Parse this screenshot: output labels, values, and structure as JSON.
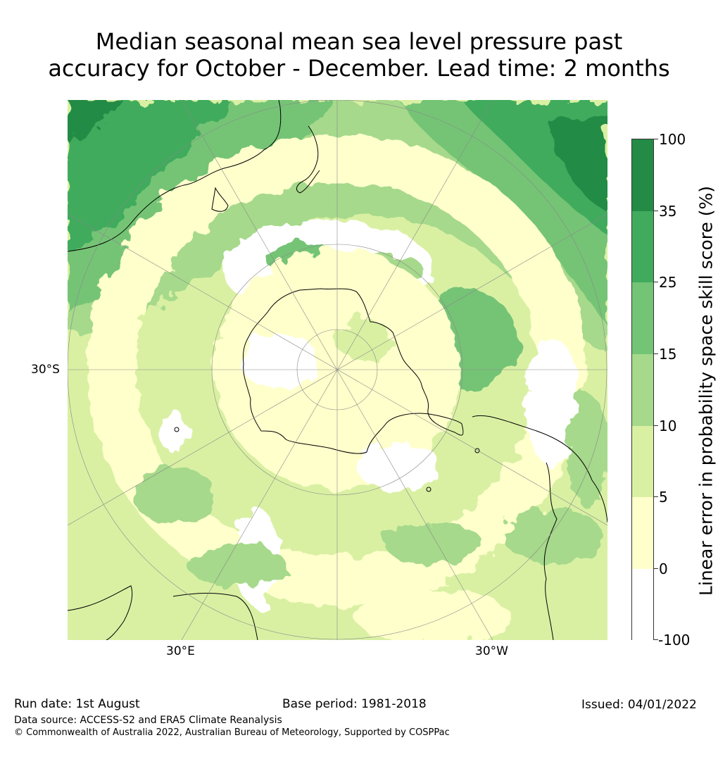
{
  "title": {
    "line1": "Median seasonal mean sea level pressure past",
    "line2": "accuracy for October - December. Lead time: 2 months"
  },
  "map": {
    "latitude_labels": [
      "30°S"
    ],
    "longitude_labels": [
      "30°E",
      "30°W"
    ],
    "projection": "south-polar-stereographic",
    "land_outline_color": "#000000",
    "graticule_color": "#888888"
  },
  "colorbar": {
    "title": "Linear error in probability space skill score (%)",
    "ticks": [
      "100",
      "35",
      "25",
      "15",
      "10",
      "5",
      "0",
      "-100"
    ],
    "bins": [
      {
        "range": "35 to 100",
        "color": "#238b45"
      },
      {
        "range": "25 to 35",
        "color": "#41ab5d"
      },
      {
        "range": "15 to 25",
        "color": "#74c476"
      },
      {
        "range": "10 to 15",
        "color": "#a6d98b"
      },
      {
        "range": "5 to 10",
        "color": "#d9f0a3"
      },
      {
        "range": "0 to 5",
        "color": "#ffffcc"
      },
      {
        "range": "-100 to 0",
        "color": "#ffffff"
      }
    ]
  },
  "footer": {
    "run_date": "Run date: 1st August",
    "base_period": "Base period: 1981-2018",
    "issued": "Issued: 04/01/2022",
    "data_source": "Data source: ACCESS-S2 and ERA5 Climate Reanalysis",
    "copyright": "© Commonwealth of Australia 2022, Australian Bureau of Meteorology, Supported by COSPPac"
  }
}
